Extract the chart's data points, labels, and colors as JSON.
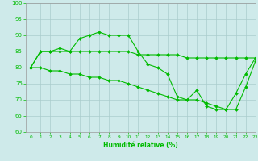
{
  "xlabel": "Humidité relative (%)",
  "xlim": [
    -0.5,
    23
  ],
  "ylim": [
    60,
    100
  ],
  "yticks": [
    60,
    65,
    70,
    75,
    80,
    85,
    90,
    95,
    100
  ],
  "xticks": [
    0,
    1,
    2,
    3,
    4,
    5,
    6,
    7,
    8,
    9,
    10,
    11,
    12,
    13,
    14,
    15,
    16,
    17,
    18,
    19,
    20,
    21,
    22,
    23
  ],
  "background_color": "#ceeaea",
  "grid_color": "#aacccc",
  "line_color": "#00bb00",
  "line1": [
    80,
    85,
    85,
    86,
    85,
    89,
    90,
    91,
    90,
    90,
    90,
    85,
    81,
    80,
    78,
    71,
    70,
    73,
    68,
    67,
    67,
    72,
    78,
    83
  ],
  "line2": [
    80,
    85,
    85,
    85,
    85,
    85,
    85,
    85,
    85,
    85,
    85,
    84,
    84,
    84,
    84,
    84,
    83,
    83,
    83,
    83,
    83,
    83,
    83,
    83
  ],
  "line3": [
    80,
    80,
    79,
    79,
    78,
    78,
    77,
    77,
    76,
    76,
    75,
    74,
    73,
    72,
    71,
    70,
    70,
    70,
    69,
    68,
    67,
    67,
    74,
    82
  ]
}
